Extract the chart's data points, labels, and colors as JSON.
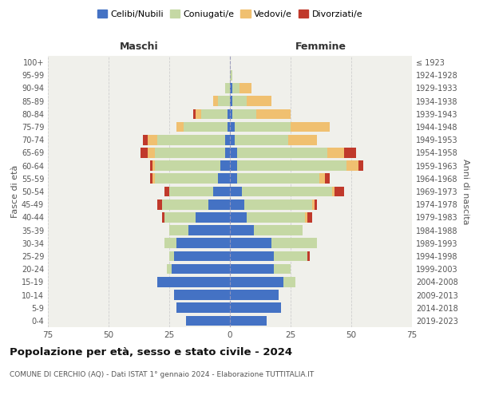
{
  "age_groups": [
    "0-4",
    "5-9",
    "10-14",
    "15-19",
    "20-24",
    "25-29",
    "30-34",
    "35-39",
    "40-44",
    "45-49",
    "50-54",
    "55-59",
    "60-64",
    "65-69",
    "70-74",
    "75-79",
    "80-84",
    "85-89",
    "90-94",
    "95-99",
    "100+"
  ],
  "birth_years": [
    "2019-2023",
    "2014-2018",
    "2009-2013",
    "2004-2008",
    "1999-2003",
    "1994-1998",
    "1989-1993",
    "1984-1988",
    "1979-1983",
    "1974-1978",
    "1969-1973",
    "1964-1968",
    "1959-1963",
    "1954-1958",
    "1949-1953",
    "1944-1948",
    "1939-1943",
    "1934-1938",
    "1929-1933",
    "1924-1928",
    "≤ 1923"
  ],
  "males": {
    "celibe": [
      18,
      22,
      23,
      30,
      24,
      23,
      22,
      17,
      14,
      9,
      7,
      5,
      4,
      2,
      2,
      1,
      1,
      0,
      0,
      0,
      0
    ],
    "coniugato": [
      0,
      0,
      0,
      0,
      2,
      2,
      5,
      8,
      13,
      19,
      18,
      26,
      27,
      29,
      28,
      18,
      11,
      5,
      2,
      0,
      0
    ],
    "vedovo": [
      0,
      0,
      0,
      0,
      0,
      0,
      0,
      0,
      0,
      0,
      0,
      1,
      1,
      3,
      4,
      3,
      2,
      2,
      0,
      0,
      0
    ],
    "divorziato": [
      0,
      0,
      0,
      0,
      0,
      0,
      0,
      0,
      1,
      2,
      2,
      1,
      1,
      3,
      2,
      0,
      1,
      0,
      0,
      0,
      0
    ]
  },
  "females": {
    "nubile": [
      15,
      21,
      20,
      22,
      18,
      18,
      17,
      10,
      7,
      6,
      5,
      3,
      3,
      3,
      2,
      2,
      1,
      1,
      1,
      0,
      0
    ],
    "coniugata": [
      0,
      0,
      0,
      5,
      7,
      14,
      19,
      20,
      24,
      28,
      37,
      34,
      45,
      37,
      22,
      23,
      10,
      6,
      3,
      1,
      0
    ],
    "vedova": [
      0,
      0,
      0,
      0,
      0,
      0,
      0,
      0,
      1,
      1,
      1,
      2,
      5,
      7,
      12,
      16,
      14,
      10,
      5,
      0,
      0
    ],
    "divorziata": [
      0,
      0,
      0,
      0,
      0,
      1,
      0,
      0,
      2,
      1,
      4,
      2,
      2,
      5,
      0,
      0,
      0,
      0,
      0,
      0,
      0
    ]
  },
  "colors": {
    "celibe": "#4472C4",
    "coniugato": "#c5d8a4",
    "vedovo": "#f0c070",
    "divorziato": "#c0392b"
  },
  "xlim": 75,
  "title": "Popolazione per età, sesso e stato civile - 2024",
  "subtitle": "COMUNE DI CERCHIO (AQ) - Dati ISTAT 1° gennaio 2024 - Elaborazione TUTTITALIA.IT",
  "xlabel_left": "Maschi",
  "xlabel_right": "Femmine",
  "ylabel_left": "Fasce di età",
  "ylabel_right": "Anni di nascita",
  "legend_labels": [
    "Celibi/Nubili",
    "Coniugati/e",
    "Vedovi/e",
    "Divorziati/e"
  ],
  "background_color": "#ffffff",
  "plot_bg_color": "#f0f0eb",
  "grid_color": "#cccccc"
}
